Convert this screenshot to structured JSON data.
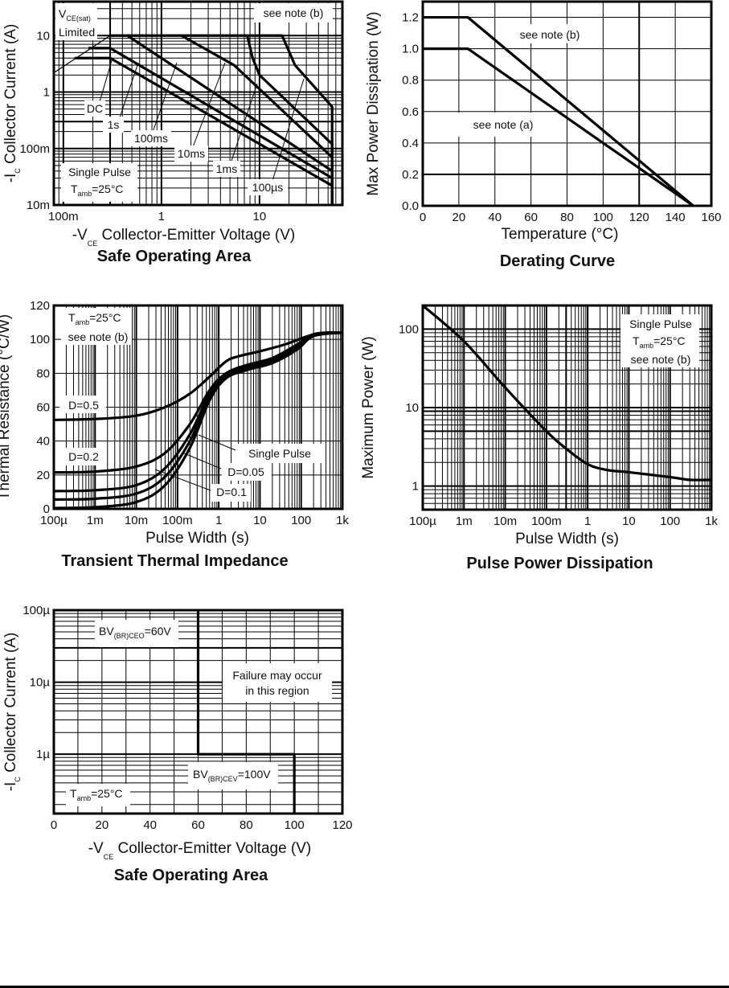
{
  "chart_data": [
    {
      "id": "soa1",
      "type": "line",
      "title": "Safe Operating Area",
      "xlabel": "-V_CE Collector-Emitter Voltage (V)",
      "ylabel": "-I_C Collector Current (A)",
      "xscale": "log",
      "yscale": "log",
      "xlim": [
        0.08,
        70
      ],
      "ylim": [
        0.01,
        40
      ],
      "xticks": [
        {
          "v": 0.1,
          "label": "100m"
        },
        {
          "v": 1,
          "label": "1"
        },
        {
          "v": 10,
          "label": "10"
        }
      ],
      "yticks": [
        {
          "v": 0.01,
          "label": "10m"
        },
        {
          "v": 0.1,
          "label": "100m"
        },
        {
          "v": 1,
          "label": "1"
        },
        {
          "v": 10,
          "label": "10"
        }
      ],
      "grid": true,
      "series": [
        {
          "name": "DC",
          "points": [
            [
              0.13,
              4
            ],
            [
              0.3,
              4
            ],
            [
              55,
              0.022
            ],
            [
              55,
              0.01
            ]
          ]
        },
        {
          "name": "1s",
          "points": [
            [
              0.18,
              6
            ],
            [
              0.3,
              6
            ],
            [
              55,
              0.03
            ],
            [
              55,
              0.01
            ]
          ]
        },
        {
          "name": "100ms",
          "points": [
            [
              0.3,
              10
            ],
            [
              0.45,
              10
            ],
            [
              55,
              0.04
            ],
            [
              55,
              0.01
            ]
          ]
        },
        {
          "name": "10ms",
          "points": [
            [
              0.45,
              10
            ],
            [
              1.6,
              10
            ],
            [
              5.5,
              3
            ],
            [
              55,
              0.07
            ],
            [
              55,
              0.01
            ]
          ]
        },
        {
          "name": "1ms",
          "points": [
            [
              1.6,
              10
            ],
            [
              7.5,
              10
            ],
            [
              8.5,
              4
            ],
            [
              10,
              2
            ],
            [
              55,
              0.12
            ],
            [
              55,
              0.01
            ]
          ]
        },
        {
          "name": "100us",
          "points": [
            [
              7.5,
              10
            ],
            [
              17,
              10
            ],
            [
              23,
              3
            ],
            [
              55,
              0.55
            ],
            [
              55,
              0.01
            ]
          ]
        }
      ],
      "limit_line": {
        "name": "VCE(sat) Limited",
        "points": [
          [
            0.08,
            2.2
          ],
          [
            0.3,
            10
          ]
        ]
      },
      "annotations": {
        "vcesat_v": "V",
        "vcesat_sub": "CE(sat)",
        "limited": "Limited",
        "note": "see note (b)",
        "single_pulse": "Single Pulse",
        "tamb_t": "T",
        "tamb_sub": "amb",
        "tamb_val": "=25°C",
        "labels": [
          "DC",
          "1s",
          "100ms",
          "10ms",
          "1ms",
          "100µs"
        ]
      },
      "xlabel_parts": {
        "pre": "-V",
        "sub": "CE",
        "post": "  Collector-Emitter Voltage (V)"
      },
      "ylabel_parts": {
        "pre": "-I",
        "sub": "C",
        "post": "  Collector Current (A)"
      }
    },
    {
      "id": "derating",
      "type": "line",
      "title": "Derating Curve",
      "xlabel": "Temperature (°C)",
      "ylabel": "Max Power Dissipation (W)",
      "xlim": [
        0,
        160
      ],
      "ylim": [
        0,
        1.3
      ],
      "xticks": [
        0,
        20,
        40,
        60,
        80,
        100,
        120,
        140,
        160
      ],
      "yticks": [
        {
          "v": 0,
          "label": "0.0"
        },
        {
          "v": 0.2,
          "label": "0.2"
        },
        {
          "v": 0.4,
          "label": "0.4"
        },
        {
          "v": 0.6,
          "label": "0.6"
        },
        {
          "v": 0.8,
          "label": "0.8"
        },
        {
          "v": 1.0,
          "label": "1.0"
        },
        {
          "v": 1.2,
          "label": "1.2"
        }
      ],
      "grid": true,
      "series": [
        {
          "name": "see note (b)",
          "points": [
            [
              0,
              1.2
            ],
            [
              25,
              1.2
            ],
            [
              150,
              0
            ]
          ]
        },
        {
          "name": "see note (a)",
          "points": [
            [
              0,
              1.0
            ],
            [
              25,
              1.0
            ],
            [
              150,
              0
            ]
          ]
        }
      ],
      "annotations": {
        "note_b": "see note (b)",
        "note_a": "see note (a)"
      }
    },
    {
      "id": "transient",
      "type": "line",
      "title": "Transient Thermal Impedance",
      "xlabel": "Pulse Width (s)",
      "ylabel": "Thermal Resistance (°C/W)",
      "xscale": "log",
      "xlim": [
        0.0001,
        1000
      ],
      "ylim": [
        0,
        120
      ],
      "xticks": [
        {
          "v": 0.0001,
          "label": "100µ"
        },
        {
          "v": 0.001,
          "label": "1m"
        },
        {
          "v": 0.01,
          "label": "10m"
        },
        {
          "v": 0.1,
          "label": "100m"
        },
        {
          "v": 1,
          "label": "1"
        },
        {
          "v": 10,
          "label": "10"
        },
        {
          "v": 100,
          "label": "100"
        },
        {
          "v": 1000,
          "label": "1k"
        }
      ],
      "yticks": [
        0,
        20,
        40,
        60,
        80,
        100,
        120
      ],
      "grid": true,
      "series": [
        {
          "name": "D=0.5",
          "points": [
            [
              0.0001,
              52.5
            ],
            [
              0.001,
              53
            ],
            [
              0.01,
              55
            ],
            [
              0.05,
              60
            ],
            [
              0.2,
              68
            ],
            [
              0.6,
              78
            ],
            [
              1.5,
              87
            ],
            [
              3,
              90
            ],
            [
              10,
              93
            ],
            [
              40,
              97
            ],
            [
              150,
              102
            ],
            [
              400,
              104
            ],
            [
              1000,
              104
            ]
          ]
        },
        {
          "name": "D=0.2",
          "points": [
            [
              0.0001,
              21.5
            ],
            [
              0.001,
              22
            ],
            [
              0.01,
              25
            ],
            [
              0.05,
              33
            ],
            [
              0.2,
              50
            ],
            [
              0.6,
              70
            ],
            [
              1.5,
              80
            ],
            [
              5,
              85
            ],
            [
              20,
              89
            ],
            [
              80,
              97
            ],
            [
              200,
              103
            ],
            [
              1000,
              104
            ]
          ]
        },
        {
          "name": "D=0.1",
          "points": [
            [
              0.0001,
              10.5
            ],
            [
              0.001,
              11
            ],
            [
              0.01,
              14
            ],
            [
              0.05,
              24
            ],
            [
              0.2,
              44
            ],
            [
              0.6,
              68
            ],
            [
              1.5,
              79
            ],
            [
              5,
              84
            ],
            [
              20,
              88
            ],
            [
              80,
              96
            ],
            [
              200,
              103
            ],
            [
              1000,
              104
            ]
          ]
        },
        {
          "name": "D=0.05",
          "points": [
            [
              0.0001,
              5.5
            ],
            [
              0.001,
              6
            ],
            [
              0.01,
              9
            ],
            [
              0.05,
              19
            ],
            [
              0.2,
              40
            ],
            [
              0.6,
              66
            ],
            [
              1.5,
              78
            ],
            [
              5,
              83
            ],
            [
              20,
              87
            ],
            [
              80,
              95
            ],
            [
              200,
              103
            ],
            [
              1000,
              104
            ]
          ]
        },
        {
          "name": "Single Pulse",
          "points": [
            [
              0.0001,
              0.5
            ],
            [
              0.001,
              1
            ],
            [
              0.01,
              4
            ],
            [
              0.05,
              14
            ],
            [
              0.2,
              36
            ],
            [
              0.6,
              64
            ],
            [
              1.5,
              77
            ],
            [
              5,
              82
            ],
            [
              20,
              86
            ],
            [
              80,
              94
            ],
            [
              200,
              102
            ],
            [
              1000,
              104
            ]
          ]
        }
      ],
      "annotations": {
        "tamb_t": "T",
        "tamb_sub": "amb",
        "tamb_val": "=25°C",
        "note": "see note (b)",
        "d05": "D=0.5",
        "d02": "D=0.2",
        "single": "Single Pulse",
        "d005": "D=0.05",
        "d01": "D=0.1"
      }
    },
    {
      "id": "pulsepower",
      "type": "line",
      "title": "Pulse Power Dissipation",
      "xlabel": "Pulse Width (s)",
      "ylabel": "Maximum Power (W)",
      "xscale": "log",
      "yscale": "log",
      "xlim": [
        0.0001,
        1000
      ],
      "ylim": [
        0.5,
        200
      ],
      "xticks": [
        {
          "v": 0.0001,
          "label": "100µ"
        },
        {
          "v": 0.001,
          "label": "1m"
        },
        {
          "v": 0.01,
          "label": "10m"
        },
        {
          "v": 0.1,
          "label": "100m"
        },
        {
          "v": 1,
          "label": "1"
        },
        {
          "v": 10,
          "label": "10"
        },
        {
          "v": 100,
          "label": "100"
        },
        {
          "v": 1000,
          "label": "1k"
        }
      ],
      "yticks": [
        {
          "v": 1,
          "label": "1"
        },
        {
          "v": 10,
          "label": "10"
        },
        {
          "v": 100,
          "label": "100"
        }
      ],
      "grid": true,
      "series": [
        {
          "name": "Single Pulse",
          "points": [
            [
              0.0001,
              200
            ],
            [
              0.001,
              70
            ],
            [
              0.01,
              18
            ],
            [
              0.1,
              5
            ],
            [
              0.3,
              3
            ],
            [
              1,
              1.9
            ],
            [
              3,
              1.6
            ],
            [
              10,
              1.5
            ],
            [
              100,
              1.3
            ],
            [
              300,
              1.2
            ],
            [
              1000,
              1.2
            ]
          ]
        }
      ],
      "annotations": {
        "single": "Single Pulse",
        "tamb_t": "T",
        "tamb_sub": "amb",
        "tamb_val": "=25°C",
        "note": "see note (b)"
      }
    },
    {
      "id": "soa2",
      "type": "line",
      "title": "Safe Operating Area",
      "xlabel": "-V_CE Collector-Emitter Voltage (V)",
      "ylabel": "-I_C Collector Current (A)",
      "yscale": "log",
      "xlim": [
        0,
        120
      ],
      "ylim": [
        1.5e-07,
        0.0001
      ],
      "xticks": [
        0,
        20,
        40,
        60,
        80,
        100,
        120
      ],
      "yticks": [
        {
          "v": 1e-06,
          "label": "1µ"
        },
        {
          "v": 1e-05,
          "label": "10µ"
        },
        {
          "v": 0.0001,
          "label": "100µ"
        }
      ],
      "grid": true,
      "series": [
        {
          "name": "Boundary",
          "points": [
            [
              60,
              0.0001
            ],
            [
              60,
              1e-06
            ],
            [
              100,
              1e-06
            ],
            [
              100,
              1.5e-07
            ]
          ]
        }
      ],
      "annotations": {
        "bvceo_pre": "BV",
        "bvceo_sub": "(BR)CEO",
        "bvceo_val": "=60V",
        "bvcev_pre": "BV",
        "bvcev_sub": "(BR)CEV",
        "bvcev_val": "=100V",
        "fail1": "Failure may occur",
        "fail2": "in this region",
        "tamb_t": "T",
        "tamb_sub": "amb",
        "tamb_val": "=25°C"
      },
      "xlabel_parts": {
        "pre": "-V",
        "sub": "CE",
        "post": " Collector-Emitter Voltage (V)"
      },
      "ylabel_parts": {
        "pre": "-I",
        "sub": "C",
        "post": " Collector Current (A)"
      }
    }
  ]
}
